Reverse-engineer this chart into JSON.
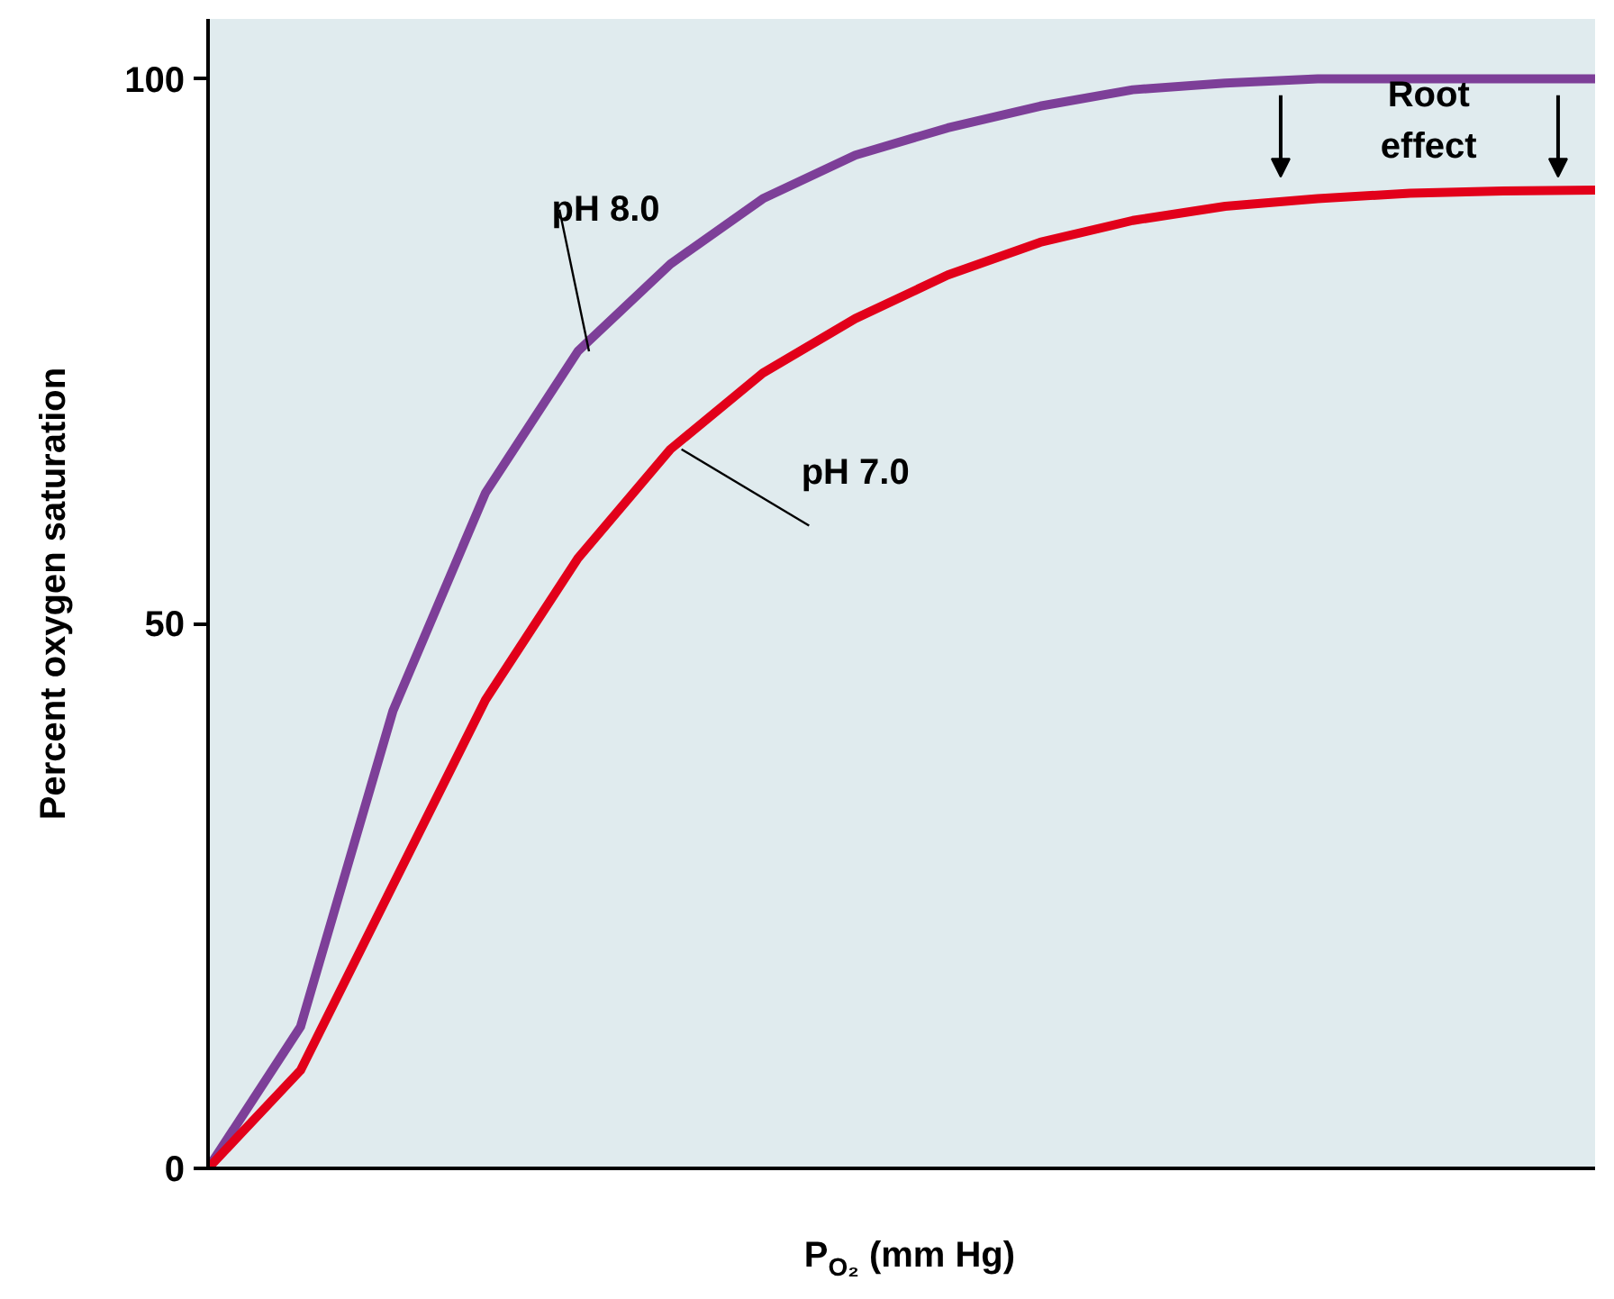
{
  "chart_data": {
    "type": "line",
    "xlabel": "P$_{O₂}$ (mm Hg)",
    "ylabel": "Percent oxygen saturation",
    "categories": [
      null,
      null,
      null,
      null,
      null,
      null,
      null,
      null,
      null,
      null,
      null,
      null,
      null,
      null,
      null,
      null
    ],
    "series": [
      {
        "name": "pH 8.0",
        "color": "#7d3f98",
        "values": [
          0,
          13,
          42,
          62,
          75,
          83,
          89,
          93,
          95.5,
          97.5,
          99,
          99.6,
          100,
          100,
          100,
          100
        ]
      },
      {
        "name": "pH 7.0",
        "color": "#e2001a",
        "values": [
          0,
          9,
          26,
          43,
          56,
          66,
          73,
          78,
          82,
          85,
          87,
          88.3,
          89,
          89.5,
          89.7,
          89.8
        ]
      }
    ],
    "annotations": [
      "Root effect"
    ],
    "ylim": [
      0,
      105.5
    ],
    "yticks": [
      0,
      50,
      100
    ],
    "tick_labels": "y",
    "grid": false,
    "legend": false,
    "marker": "none",
    "line_style": "solid"
  }
}
